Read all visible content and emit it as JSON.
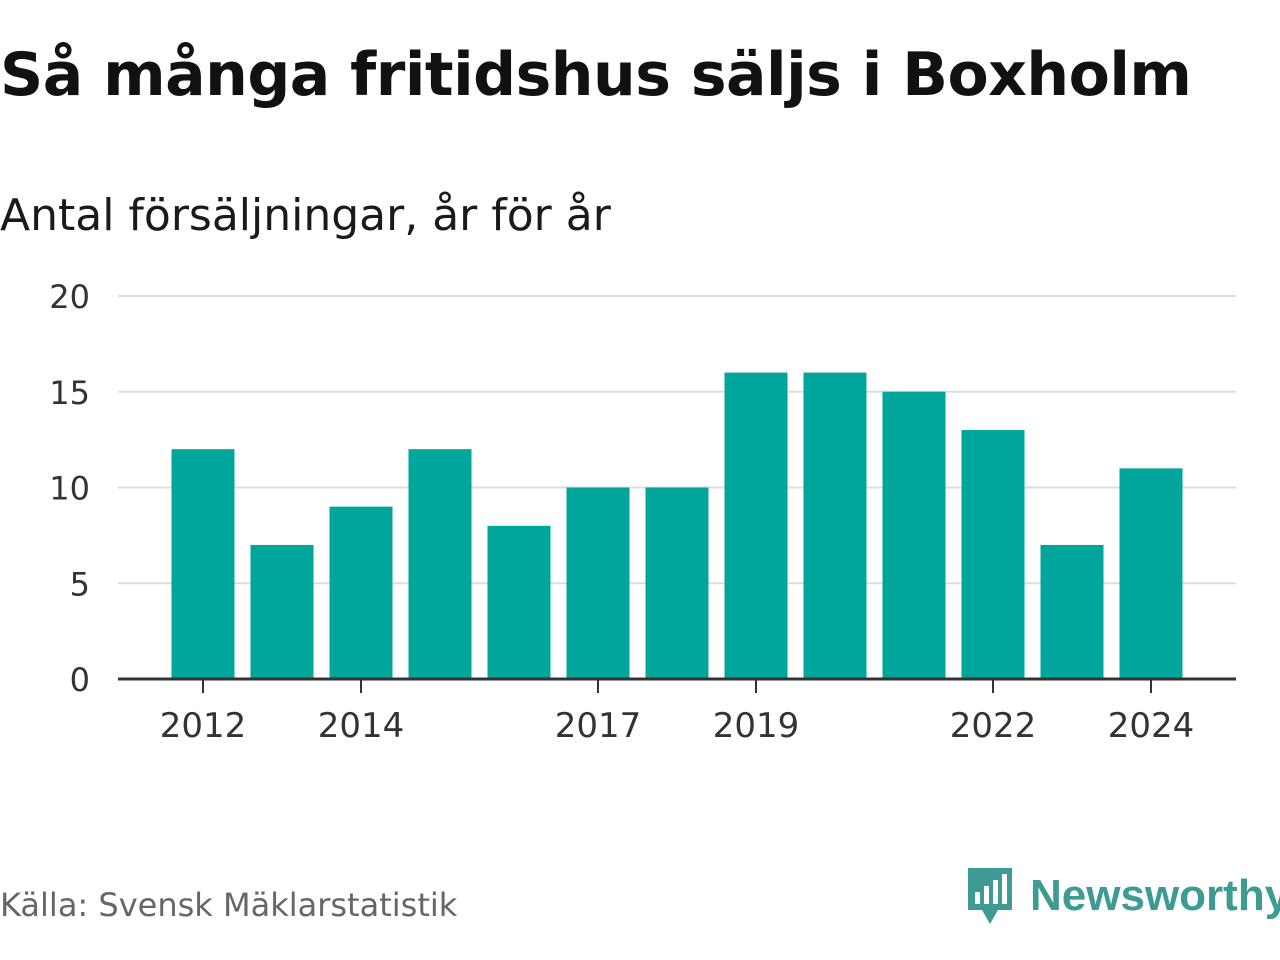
{
  "title": "Så många fritidshus säljs i Boxholm",
  "subtitle": "Antal försäljningar, år för år",
  "source": "Källa: Svensk Mäklarstatistik",
  "brand": {
    "name": "Newsworthy",
    "icon": "newsworthy-logo-icon",
    "color": "#3d9b93"
  },
  "chart_data": {
    "type": "bar",
    "title": "Så många fritidshus säljs i Boxholm",
    "subtitle": "Antal försäljningar, år för år",
    "xlabel": "",
    "ylabel": "",
    "categories": [
      "2012",
      "2013",
      "2014",
      "2015",
      "2016",
      "2017",
      "2018",
      "2019",
      "2020",
      "2021",
      "2022",
      "2023",
      "2024"
    ],
    "values": [
      12,
      7,
      9,
      12,
      8,
      10,
      10,
      16,
      16,
      15,
      13,
      7,
      11
    ],
    "x_tick_labels": [
      "2012",
      "2014",
      "2017",
      "2019",
      "2022",
      "2024"
    ],
    "y_ticks": [
      0,
      5,
      10,
      15,
      20
    ],
    "ylim": [
      0,
      20
    ],
    "grid": true,
    "bar_color": "#00a59b"
  }
}
